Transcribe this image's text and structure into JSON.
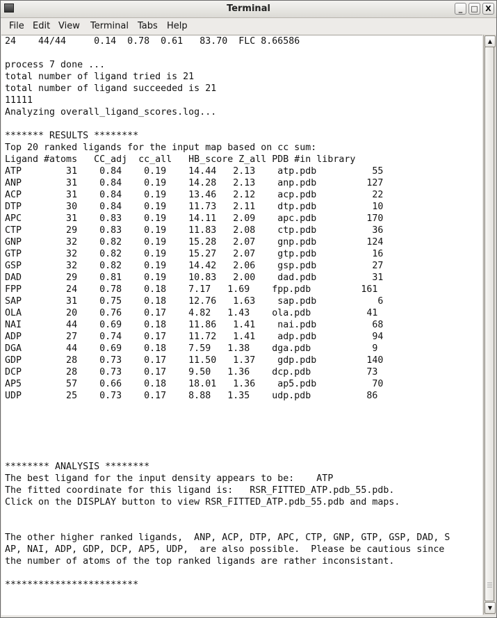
{
  "window": {
    "title": "Terminal"
  },
  "menu": [
    {
      "label": "File"
    },
    {
      "label": "Edit"
    },
    {
      "label": "View"
    },
    {
      "label": "Terminal"
    },
    {
      "label": "Tabs"
    },
    {
      "label": "Help"
    }
  ],
  "icons": {
    "app": "terminal-app-icon",
    "minimize": "minimize-icon",
    "maximize": "maximize-icon",
    "close": "close-icon"
  },
  "terminal": {
    "lines": [
      "24    44/44     0.14  0.78  0.61   83.70  FLC 8.66586",
      "",
      "process 7 done ...",
      "total number of ligand tried is 21",
      "total number of ligand succeeded is 21",
      "11111",
      "Analyzing overall_ligand_scores.log...",
      "",
      "******* RESULTS ********",
      "Top 20 ranked ligands for the input map based on cc sum:",
      "Ligand #atoms   CC_adj  cc_all   HB_score Z_all PDB #in library",
      "ATP        31    0.84    0.19    14.44   2.13    atp.pdb          55",
      "ANP        31    0.84    0.19    14.28   2.13    anp.pdb         127",
      "ACP        31    0.84    0.19    13.46   2.12    acp.pdb          22",
      "DTP        30    0.84    0.19    11.73   2.11    dtp.pdb          10",
      "APC        31    0.83    0.19    14.11   2.09    apc.pdb         170",
      "CTP        29    0.83    0.19    11.83   2.08    ctp.pdb          36",
      "GNP        32    0.82    0.19    15.28   2.07    gnp.pdb         124",
      "GTP        32    0.82    0.19    15.27   2.07    gtp.pdb          16",
      "GSP        32    0.82    0.19    14.42   2.06    gsp.pdb          27",
      "DAD        29    0.81    0.19    10.83   2.00    dad.pdb          31",
      "FPP        24    0.78    0.18    7.17   1.69    fpp.pdb         161",
      "SAP        31    0.75    0.18    12.76   1.63    sap.pdb           6",
      "OLA        20    0.76    0.17    4.82   1.43    ola.pdb          41",
      "NAI        44    0.69    0.18    11.86   1.41    nai.pdb          68",
      "ADP        27    0.74    0.17    11.72   1.41    adp.pdb          94",
      "DGA        44    0.69    0.18    7.59   1.38    dga.pdb           9",
      "GDP        28    0.73    0.17    11.50   1.37    gdp.pdb         140",
      "DCP        28    0.73    0.17    9.50   1.36    dcp.pdb          73",
      "AP5        57    0.66    0.18    18.01   1.36    ap5.pdb          70",
      "UDP        25    0.73    0.17    8.88   1.35    udp.pdb          86",
      "",
      "",
      "",
      "",
      "",
      "******** ANALYSIS ********",
      "The best ligand for the input density appears to be:    ATP",
      "The fitted coordinate for this ligand is:   RSR_FITTED_ATP.pdb_55.pdb.",
      "Click on the DISPLAY button to view RSR_FITTED_ATP.pdb_55.pdb and maps.",
      "",
      "",
      "The other higher ranked ligands,  ANP, ACP, DTP, APC, CTP, GNP, GTP, GSP, DAD, S",
      "AP, NAI, ADP, GDP, DCP, AP5, UDP,  are also possible.  Please be cautious since",
      "the number of atoms of the top ranked ligands are rather inconsistant.",
      "",
      "************************"
    ]
  },
  "scrollbar": {
    "position_fraction": 1.0
  }
}
